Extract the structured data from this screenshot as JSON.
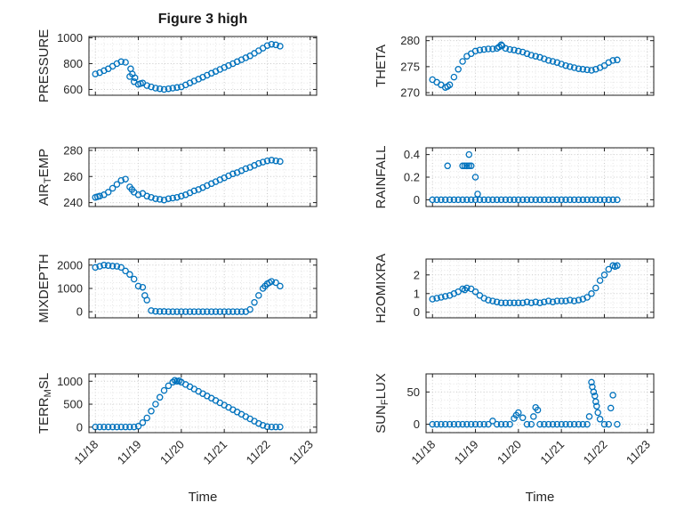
{
  "figure": {
    "title": "Figure 3 high",
    "xlabel": "Time",
    "background": "#ffffff",
    "axis_color": "#1f1f1f",
    "text_color": "#262626"
  },
  "chart_data": {
    "type": "scatter",
    "marker": "open-circle",
    "color": "#0072BD",
    "grid": "on-dotted-with-minor",
    "xlabel": "Time",
    "xlim": [
      -0.15,
      5.15
    ],
    "x_tick_positions": [
      0,
      1,
      2,
      3,
      4,
      5
    ],
    "x_tick_labels": [
      "11/18",
      "11/19",
      "11/20",
      "11/21",
      "11/22",
      "11/23"
    ],
    "x_minor_step": 0.2,
    "x_shared": [
      0,
      0.1,
      0.2,
      0.3,
      0.4,
      0.5,
      0.6,
      0.7,
      0.8,
      0.9,
      1.0,
      1.1,
      1.2,
      1.3,
      1.4,
      1.5,
      1.6,
      1.7,
      1.8,
      1.9,
      2.0,
      2.1,
      2.2,
      2.3,
      2.4,
      2.5,
      2.6,
      2.7,
      2.8,
      2.9,
      3.0,
      3.1,
      3.2,
      3.3,
      3.4,
      3.5,
      3.6,
      3.7,
      3.8,
      3.9,
      4.0,
      4.1,
      4.2,
      4.3
    ],
    "charts": [
      {
        "id": "pressure",
        "row": 0,
        "col": 0,
        "ylabel": "PRESSURE",
        "ylabel_parts": [
          [
            "PRESSURE",
            0
          ]
        ],
        "ylim": [
          555,
          1010
        ],
        "ytick_vals": [
          600,
          800,
          1000
        ],
        "ytick_labels": [
          "600",
          "800",
          "1000"
        ],
        "y_minor_step": 50,
        "y": [
          720,
          730,
          745,
          760,
          780,
          800,
          815,
          810,
          700,
          660,
          640,
          650,
          630,
          620,
          610,
          605,
          600,
          605,
          610,
          615,
          620,
          635,
          650,
          665,
          680,
          695,
          710,
          725,
          740,
          755,
          770,
          785,
          800,
          815,
          830,
          845,
          860,
          880,
          900,
          920,
          940,
          950,
          945,
          935
        ],
        "extra_points": [
          [
            0.82,
            760
          ],
          [
            0.86,
            720
          ],
          [
            0.92,
            690
          ],
          [
            1.05,
            645
          ]
        ]
      },
      {
        "id": "theta",
        "row": 0,
        "col": 1,
        "ylabel": "THETA",
        "ylabel_parts": [
          [
            "THETA",
            0
          ]
        ],
        "ylim": [
          269.5,
          280.8
        ],
        "ytick_vals": [
          270,
          275,
          280
        ],
        "ytick_labels": [
          "270",
          "275",
          "280"
        ],
        "y_minor_step": 1,
        "y": [
          272.5,
          272,
          271.5,
          271,
          271.5,
          273,
          274.5,
          276,
          277,
          277.5,
          278,
          278.2,
          278.3,
          278.4,
          278.4,
          278.5,
          279.2,
          278.5,
          278.3,
          278.2,
          278,
          277.8,
          277.5,
          277.2,
          277,
          276.8,
          276.5,
          276.2,
          276,
          275.8,
          275.5,
          275.2,
          275,
          274.8,
          274.6,
          274.5,
          274.4,
          274.3,
          274.5,
          274.8,
          275.2,
          275.8,
          276.2,
          276.3
        ],
        "extra_points": [
          [
            0.35,
            271.2
          ],
          [
            1.55,
            278.8
          ],
          [
            1.62,
            279.0
          ]
        ]
      },
      {
        "id": "air-temp",
        "row": 1,
        "col": 0,
        "ylabel": "AIR_TEMP",
        "ylabel_parts": [
          [
            "AIR",
            0
          ],
          [
            "T",
            1
          ],
          [
            "EMP",
            0
          ]
        ],
        "ylim": [
          237,
          282
        ],
        "ytick_vals": [
          240,
          260,
          280
        ],
        "ytick_labels": [
          "240",
          "260",
          "280"
        ],
        "y_minor_step": 5,
        "y": [
          244,
          245,
          246,
          248,
          251,
          254,
          257,
          258,
          252,
          248,
          246,
          247,
          245,
          244,
          243,
          242.5,
          242,
          243,
          243.5,
          244,
          245,
          246,
          247.5,
          249,
          250,
          251.5,
          253,
          254.5,
          256,
          257.5,
          259,
          260.5,
          262,
          263,
          264.5,
          266,
          267,
          268.5,
          270,
          271,
          272,
          272.5,
          272,
          271.5
        ],
        "extra_points": [
          [
            0.05,
            244.5
          ],
          [
            0.85,
            250
          ]
        ]
      },
      {
        "id": "rainfall",
        "row": 1,
        "col": 1,
        "ylabel": "RAINFALL",
        "ylabel_parts": [
          [
            "RAINFALL",
            0
          ]
        ],
        "ylim": [
          -0.06,
          0.46
        ],
        "ytick_vals": [
          0,
          0.2,
          0.4
        ],
        "ytick_labels": [
          "0",
          "0.2",
          "0.4"
        ],
        "y_minor_step": 0.05,
        "y": [
          0,
          0,
          0,
          0,
          0,
          0,
          0,
          0,
          0,
          0,
          0,
          0,
          0,
          0,
          0,
          0,
          0,
          0,
          0,
          0,
          0,
          0,
          0,
          0,
          0,
          0,
          0,
          0,
          0,
          0,
          0,
          0,
          0,
          0,
          0,
          0,
          0,
          0,
          0,
          0,
          0,
          0,
          0,
          0
        ],
        "extra_points": [
          [
            0.35,
            0.3
          ],
          [
            0.7,
            0.3
          ],
          [
            0.75,
            0.3
          ],
          [
            0.8,
            0.3
          ],
          [
            0.85,
            0.4
          ],
          [
            0.85,
            0.3
          ],
          [
            0.9,
            0.3
          ],
          [
            1.0,
            0.2
          ],
          [
            1.05,
            0.05
          ]
        ]
      },
      {
        "id": "mixdepth",
        "row": 2,
        "col": 0,
        "ylabel": "MIXDEPTH",
        "ylabel_parts": [
          [
            "MIXDEPTH",
            0
          ]
        ],
        "ylim": [
          -260,
          2260
        ],
        "ytick_vals": [
          0,
          1000,
          2000
        ],
        "ytick_labels": [
          "0",
          "1000",
          "2000"
        ],
        "y_minor_step": 250,
        "y": [
          1900,
          1950,
          2000,
          1980,
          1960,
          1950,
          1900,
          1750,
          1600,
          1400,
          1100,
          1050,
          500,
          50,
          20,
          10,
          10,
          5,
          5,
          5,
          5,
          5,
          5,
          5,
          5,
          5,
          5,
          5,
          5,
          5,
          5,
          5,
          5,
          5,
          5,
          5,
          100,
          400,
          700,
          1000,
          1200,
          1300,
          1250,
          1100
        ],
        "extra_points": [
          [
            1.15,
            700
          ],
          [
            3.95,
            1100
          ],
          [
            4.05,
            1250
          ]
        ]
      },
      {
        "id": "h2omixra",
        "row": 2,
        "col": 1,
        "ylabel": "H2OMIXRA",
        "ylabel_parts": [
          [
            "H2OMIXRA",
            0
          ]
        ],
        "ylim": [
          -0.3,
          2.85
        ],
        "ytick_vals": [
          0,
          1,
          2
        ],
        "ytick_labels": [
          "0",
          "1",
          "2"
        ],
        "y_minor_step": 0.25,
        "y": [
          0.7,
          0.75,
          0.8,
          0.85,
          0.9,
          1.0,
          1.1,
          1.25,
          1.3,
          1.25,
          1.1,
          0.9,
          0.75,
          0.65,
          0.6,
          0.55,
          0.5,
          0.5,
          0.5,
          0.5,
          0.5,
          0.5,
          0.55,
          0.5,
          0.55,
          0.5,
          0.55,
          0.6,
          0.55,
          0.6,
          0.6,
          0.6,
          0.65,
          0.6,
          0.65,
          0.7,
          0.8,
          1.0,
          1.3,
          1.7,
          2.0,
          2.3,
          2.5,
          2.5
        ],
        "extra_points": [
          [
            0.75,
            1.2
          ],
          [
            4.25,
            2.45
          ]
        ]
      },
      {
        "id": "terr-msl",
        "row": 3,
        "col": 0,
        "ylabel": "TERR_MSL",
        "ylabel_parts": [
          [
            "TERR",
            0
          ],
          [
            "M",
            1
          ],
          [
            "SL",
            0
          ]
        ],
        "ylim": [
          -120,
          1160
        ],
        "ytick_vals": [
          0,
          500,
          1000
        ],
        "ytick_labels": [
          "0",
          "500",
          "1000"
        ],
        "y_minor_step": 125,
        "y": [
          5,
          5,
          5,
          5,
          5,
          5,
          5,
          5,
          5,
          5,
          20,
          100,
          200,
          350,
          500,
          650,
          800,
          900,
          980,
          1000,
          980,
          930,
          880,
          830,
          780,
          730,
          680,
          630,
          580,
          530,
          480,
          430,
          380,
          330,
          280,
          230,
          180,
          130,
          80,
          40,
          10,
          5,
          5,
          5
        ],
        "extra_points": [
          [
            1.85,
            1020
          ],
          [
            1.95,
            1010
          ]
        ]
      },
      {
        "id": "sun-flux",
        "row": 3,
        "col": 1,
        "ylabel": "SUN_FLUX",
        "ylabel_parts": [
          [
            "SUN",
            0
          ],
          [
            "F",
            1
          ],
          [
            "LUX",
            0
          ]
        ],
        "ylim": [
          -13,
          78
        ],
        "ytick_vals": [
          0,
          50
        ],
        "ytick_labels": [
          "0",
          "50"
        ],
        "y_minor_step": 12.5,
        "y": [
          0,
          0,
          0,
          0,
          0,
          0,
          0,
          0,
          0,
          0,
          0,
          0,
          0,
          0,
          5,
          0,
          0,
          0,
          0,
          9,
          18,
          10,
          0,
          0,
          26,
          0,
          0,
          0,
          0,
          0,
          0,
          0,
          0,
          0,
          0,
          0,
          0,
          65,
          35,
          8,
          0,
          0,
          45,
          0
        ],
        "extra_points": [
          [
            1.95,
            14
          ],
          [
            2.35,
            12
          ],
          [
            2.45,
            22
          ],
          [
            3.65,
            12
          ],
          [
            3.72,
            58
          ],
          [
            3.75,
            50
          ],
          [
            3.78,
            44
          ],
          [
            3.82,
            28
          ],
          [
            3.85,
            18
          ],
          [
            4.15,
            25
          ]
        ]
      }
    ]
  }
}
